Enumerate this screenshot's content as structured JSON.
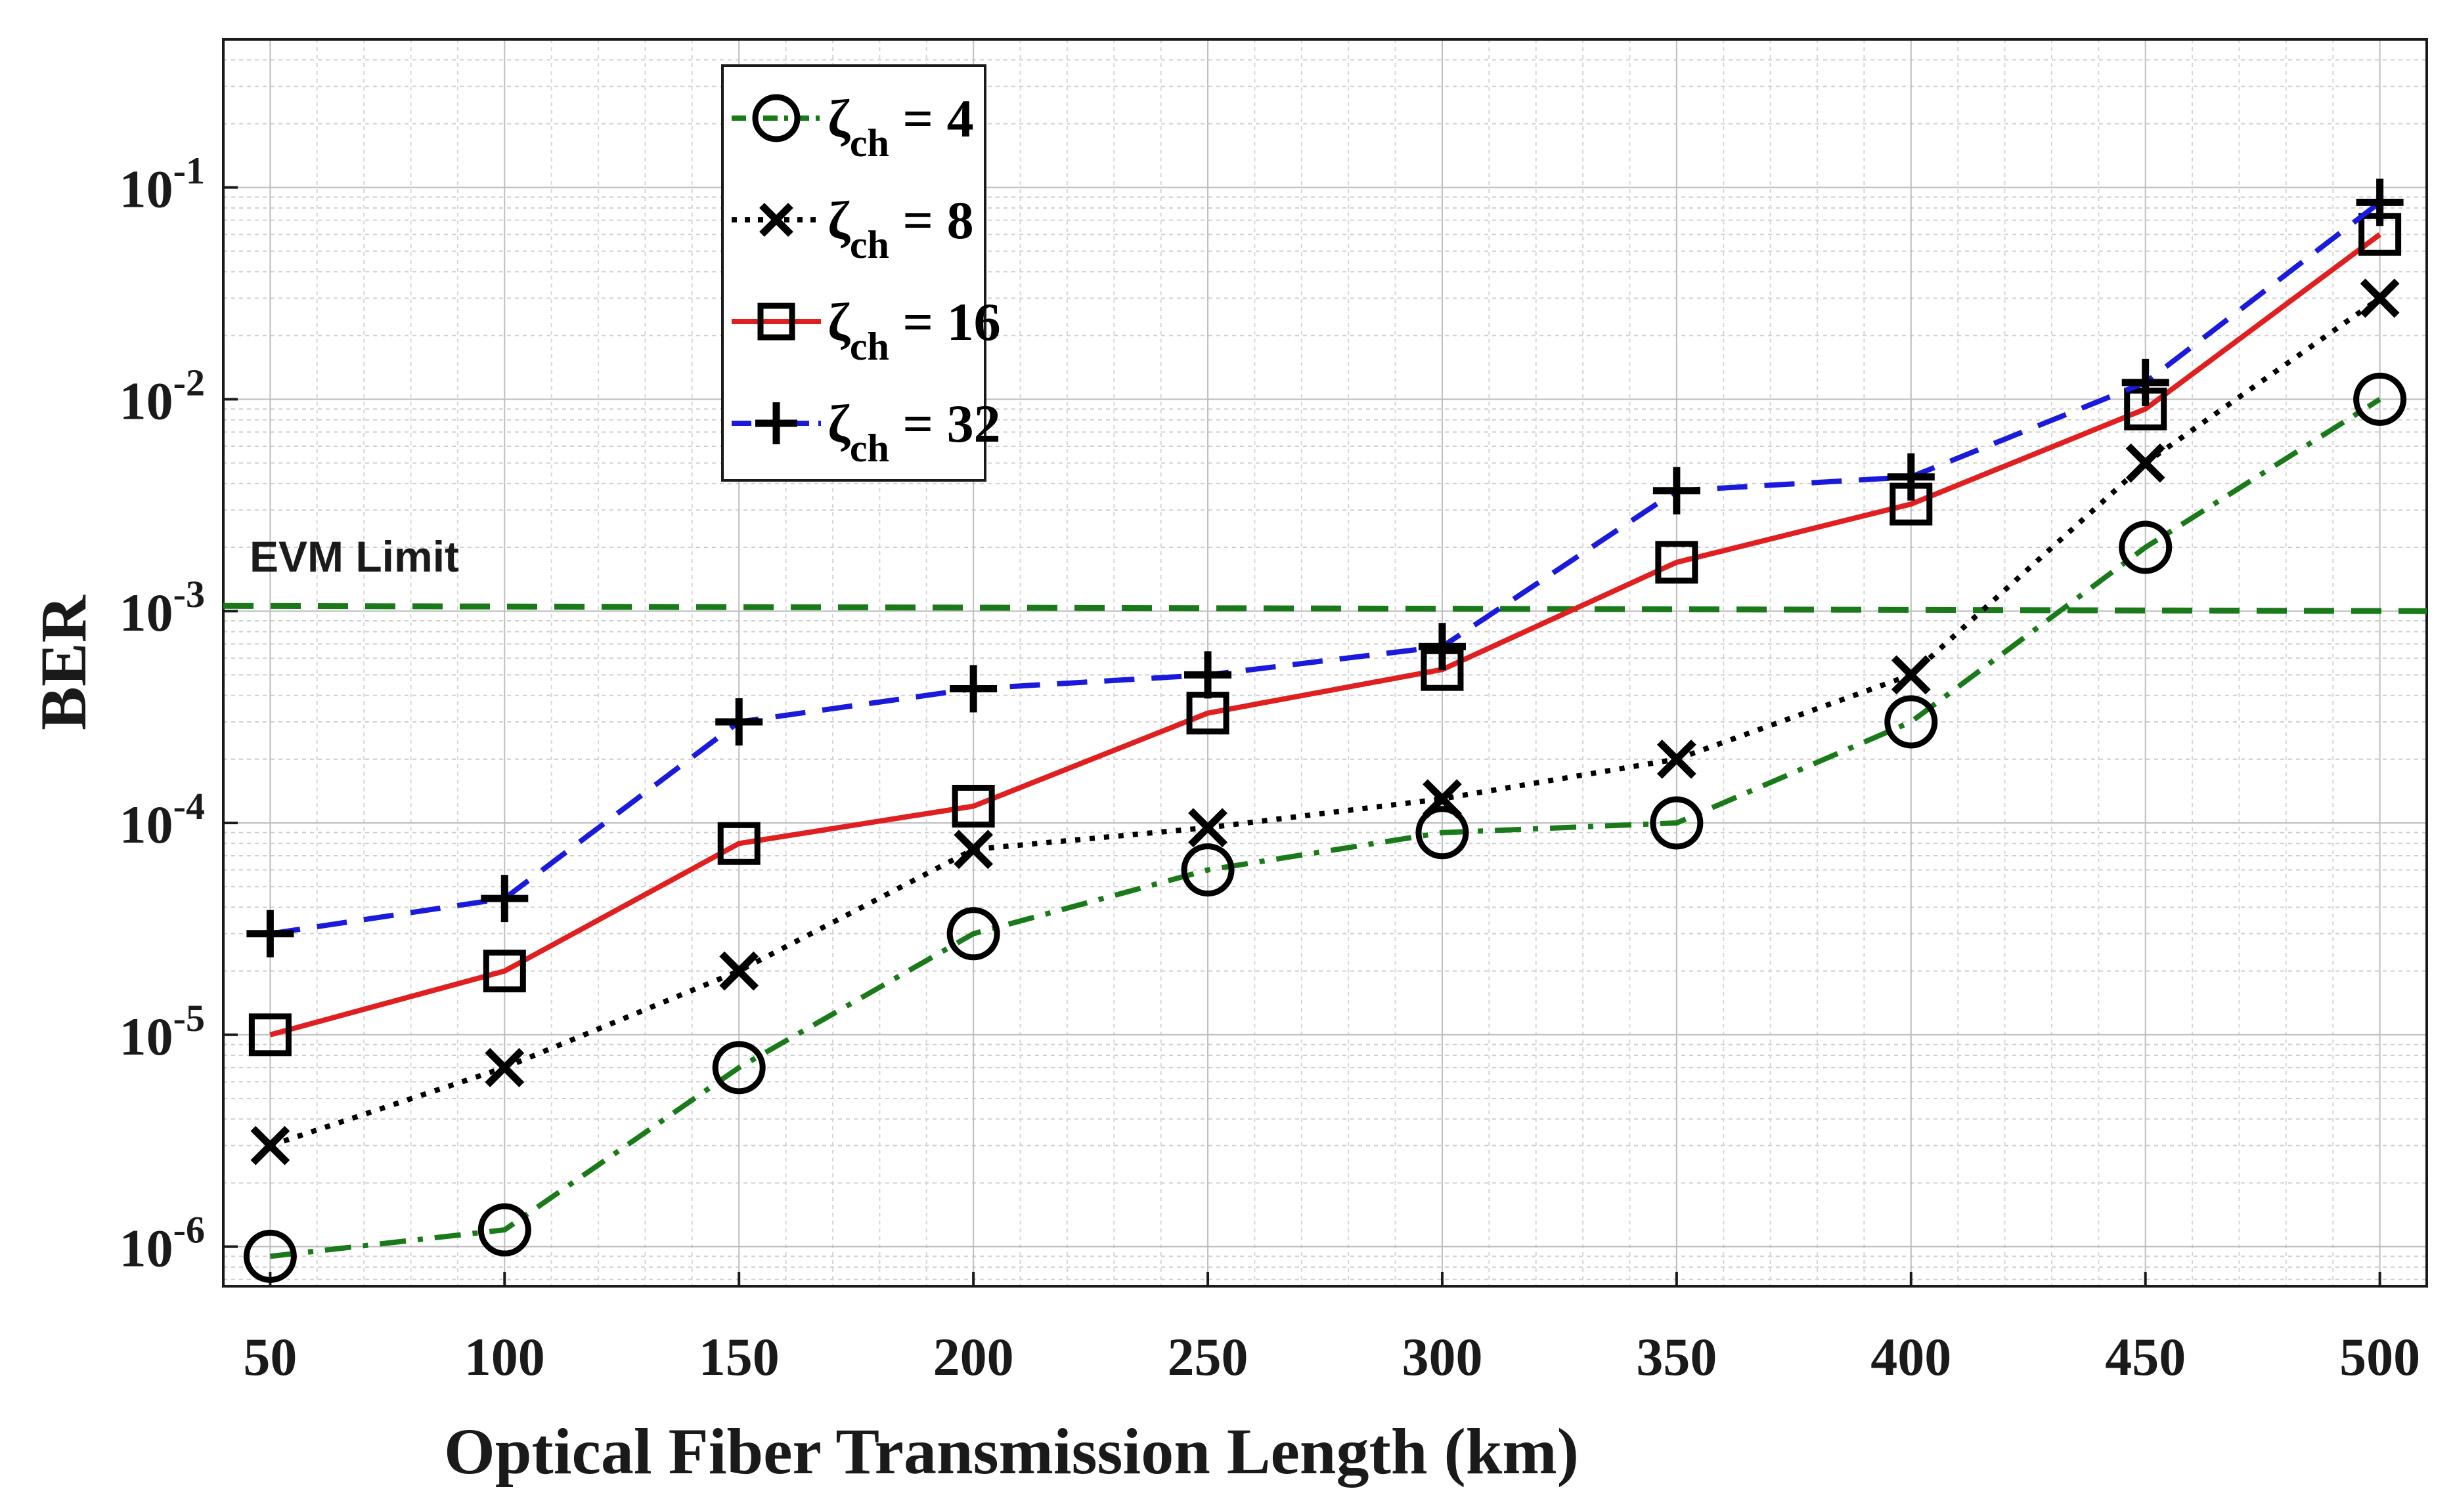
{
  "chart_data": {
    "type": "line",
    "title": "",
    "xlabel": "Optical Fiber Transmission Length (km)",
    "ylabel": "BER",
    "yscale": "log",
    "x": [
      50,
      100,
      150,
      200,
      250,
      300,
      350,
      400,
      450,
      500
    ],
    "xlim": [
      40,
      510
    ],
    "ylim": [
      6.5e-07,
      0.5
    ],
    "x_ticks": [
      "50",
      "100",
      "150",
      "200",
      "250",
      "300",
      "350",
      "400",
      "450",
      "500"
    ],
    "y_ticks": [
      {
        "base": "10",
        "exp": "-6",
        "value": 1e-06
      },
      {
        "base": "10",
        "exp": "-5",
        "value": 1e-05
      },
      {
        "base": "10",
        "exp": "-4",
        "value": 0.0001
      },
      {
        "base": "10",
        "exp": "-3",
        "value": 0.001
      },
      {
        "base": "10",
        "exp": "-2",
        "value": 0.01
      },
      {
        "base": "10",
        "exp": "-1",
        "value": 0.1
      }
    ],
    "grid": true,
    "legend_position": "top-left",
    "series": [
      {
        "name": "ζch = 4",
        "symbol": "ζ",
        "sub": "ch",
        "suffix": " = 4",
        "color": "#1a7a1a",
        "dash": "dashdot",
        "marker": "circle",
        "values": [
          9e-07,
          1.2e-06,
          7e-06,
          3e-05,
          6e-05,
          9e-05,
          0.0001,
          0.0003,
          0.002,
          0.01
        ]
      },
      {
        "name": "ζch = 8",
        "symbol": "ζ",
        "sub": "ch",
        "suffix": " = 8",
        "color": "#000000",
        "dash": "dotted",
        "marker": "x",
        "values": [
          3e-06,
          7e-06,
          2e-05,
          7.5e-05,
          9.5e-05,
          0.00013,
          0.0002,
          0.0005,
          0.005,
          0.03
        ]
      },
      {
        "name": "ζch = 16",
        "symbol": "ζ",
        "sub": "ch",
        "suffix": " = 16",
        "color": "#e02020",
        "dash": "solid",
        "marker": "square",
        "values": [
          1e-05,
          2e-05,
          8e-05,
          0.00012,
          0.00033,
          0.00053,
          0.0017,
          0.0032,
          0.009,
          0.06
        ]
      },
      {
        "name": "ζch = 32",
        "symbol": "ζ",
        "sub": "ch",
        "suffix": " = 32",
        "color": "#1a1adc",
        "dash": "dashed",
        "marker": "plus",
        "values": [
          3e-05,
          4.4e-05,
          0.0003,
          0.00043,
          0.0005,
          0.00068,
          0.0037,
          0.0043,
          0.012,
          0.085
        ]
      }
    ],
    "reference_line": {
      "label": "EVM Limit",
      "value": 0.001,
      "color": "#1a7a1a",
      "style": "dashed"
    }
  }
}
